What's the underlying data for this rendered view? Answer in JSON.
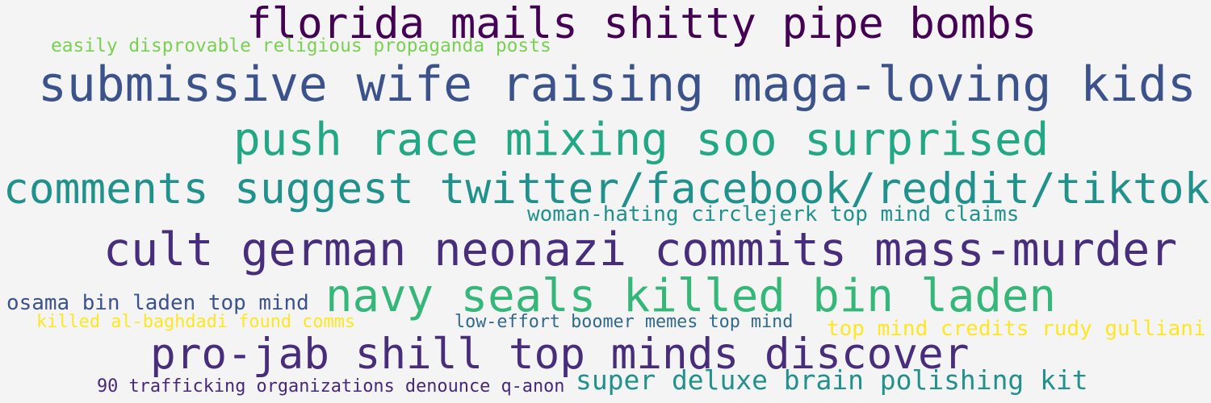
{
  "words": [
    {
      "text": "florida mails shitty pipe bombs",
      "color": "#440154"
    },
    {
      "text": "easily disprovable religious propaganda posts",
      "color": "#7ad151"
    },
    {
      "text": "submissive wife raising maga-loving kids",
      "color": "#3b528b"
    },
    {
      "text": "push race mixing soo surprised",
      "color": "#22a884"
    },
    {
      "text": "comments suggest twitter/facebook/reddit/tiktok",
      "color": "#21918c"
    },
    {
      "text": "woman-hating circlejerk top mind claims",
      "color": "#21918c"
    },
    {
      "text": "cult german neonazi commits mass-murder",
      "color": "#472d7b"
    },
    {
      "text": "osama bin laden top mind",
      "color": "#3b528b"
    },
    {
      "text": "navy seals killed bin laden",
      "color": "#35b779"
    },
    {
      "text": "killed al-baghdadi found comms",
      "color": "#fde725"
    },
    {
      "text": "low-effort boomer memes top mind",
      "color": "#31688e"
    },
    {
      "text": "top mind credits rudy gulliani",
      "color": "#fde725"
    },
    {
      "text": "pro-jab shill top minds discover",
      "color": "#472d7b"
    },
    {
      "text": "90 trafficking organizations denounce q-anon",
      "color": "#482878"
    },
    {
      "text": "super deluxe brain polishing kit",
      "color": "#21918c"
    }
  ]
}
